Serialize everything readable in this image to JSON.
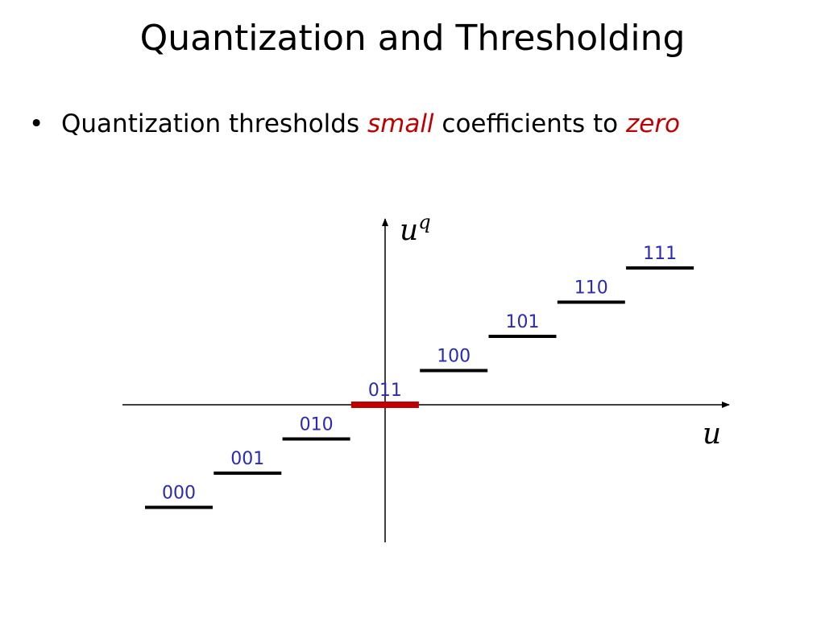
{
  "slide": {
    "title": "Quantization and Thresholding",
    "bullet": {
      "text_before": "Quantization thresholds ",
      "emphasis_1": "small",
      "text_middle": " coefficients to ",
      "emphasis_2": "zero"
    }
  },
  "diagram": {
    "x_axis_label": "u",
    "y_axis_label_base": "u",
    "y_axis_label_superscript": "q",
    "levels": [
      {
        "code": "000",
        "highlight": false
      },
      {
        "code": "001",
        "highlight": false
      },
      {
        "code": "010",
        "highlight": false
      },
      {
        "code": "011",
        "highlight": true
      },
      {
        "code": "100",
        "highlight": false
      },
      {
        "code": "101",
        "highlight": false
      },
      {
        "code": "110",
        "highlight": false
      },
      {
        "code": "111",
        "highlight": false
      }
    ],
    "colors": {
      "step": "#000000",
      "zero_step": "#c00000",
      "code_text": "#2a2ab8",
      "emphasis": "#c00000"
    }
  }
}
